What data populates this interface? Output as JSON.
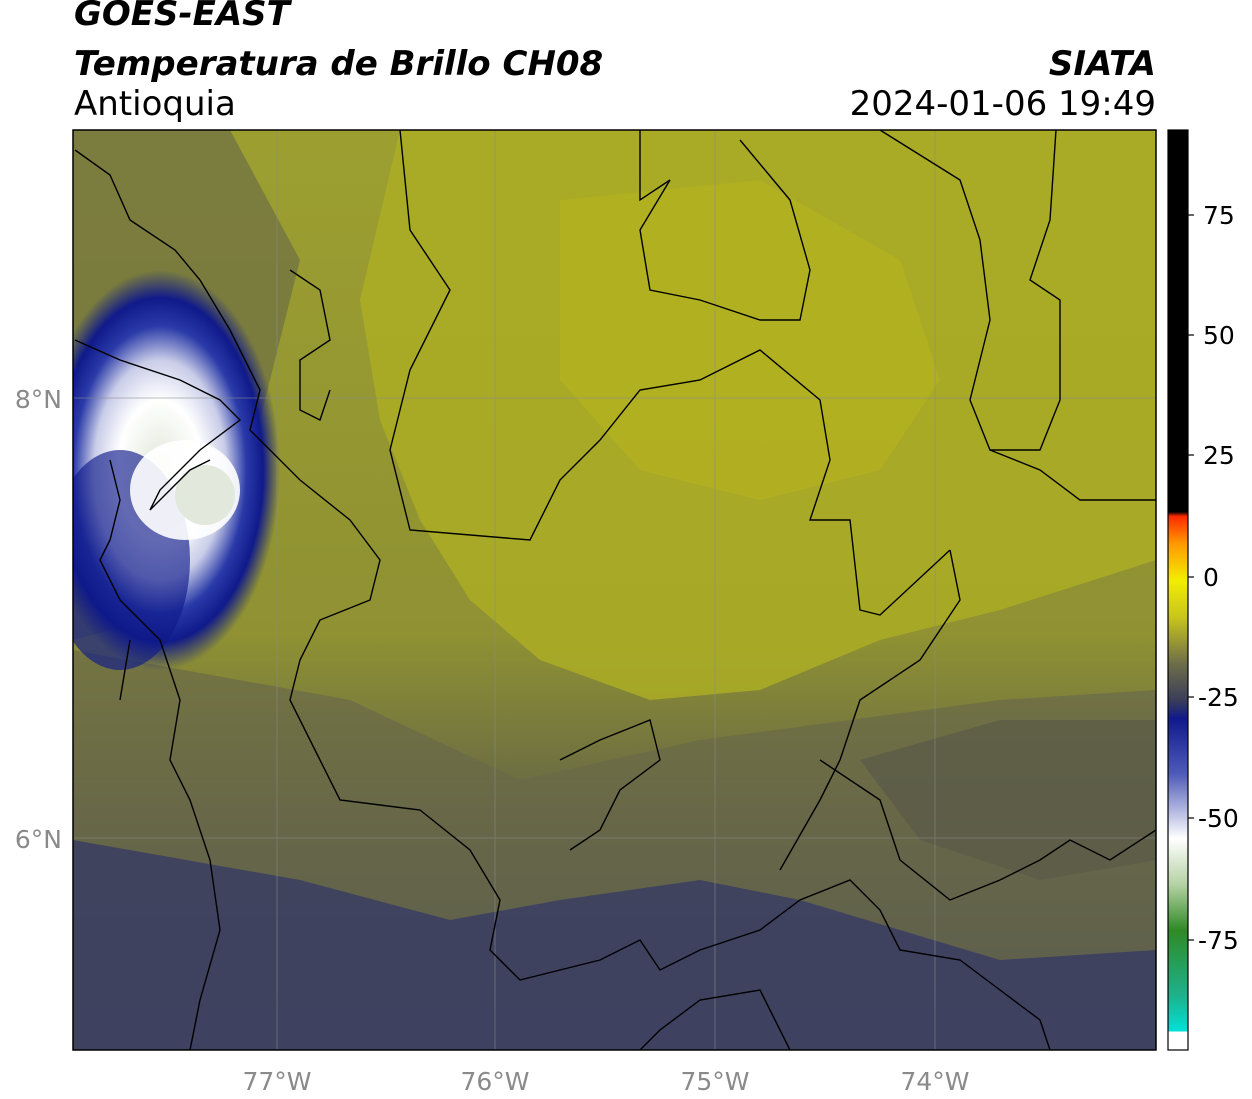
{
  "header": {
    "satellite": "GOES-EAST",
    "product": "Temperatura de Brillo CH08",
    "region": "Antioquia",
    "brand": "SIATA",
    "datetime": "2024-01-06 19:49"
  },
  "map": {
    "lon_ticks": [
      "77°W",
      "76°W",
      "75°W",
      "74°W"
    ],
    "lat_ticks": [
      "8°N",
      "6°N"
    ],
    "grid": true
  },
  "colorbar": {
    "ticks": [
      "75",
      "50",
      "25",
      "0",
      "-25",
      "-50",
      "-75"
    ],
    "colors": {
      "warm": "#000000",
      "red": "#ff2a00",
      "orange": "#ff9a00",
      "yellow": "#f2ee00",
      "olive": "#a9ac2a",
      "gray": "#5b5b4a",
      "navy": "#101a8a",
      "white": "#ffffff",
      "green": "#2f8a25",
      "cyan": "#00e2d8"
    }
  }
}
